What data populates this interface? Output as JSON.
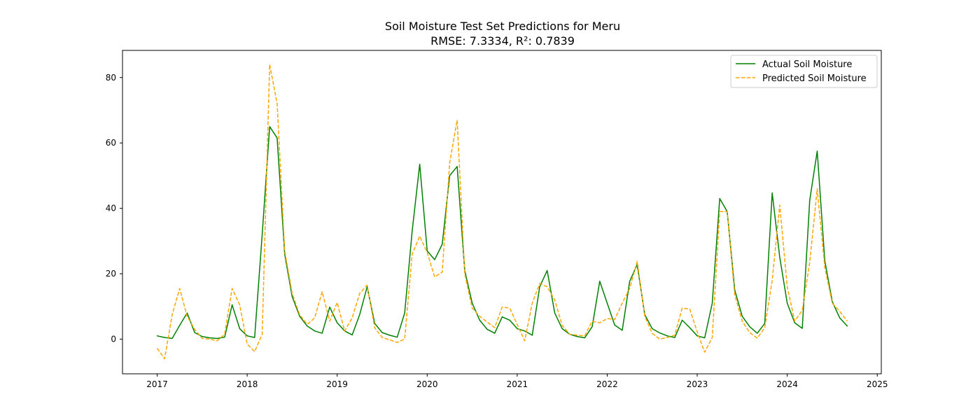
{
  "chart_data": {
    "type": "line",
    "title": "Soil Moisture Test Set Predictions for Meru",
    "subtitle": "RMSE: 7.3334, R²: 0.7839",
    "xlabel": "",
    "ylabel": "",
    "xlim": [
      2016.615,
      2025.045
    ],
    "ylim": [
      -10.6,
      88.3
    ],
    "x_ticks": [
      2017,
      2018,
      2019,
      2020,
      2021,
      2022,
      2023,
      2024,
      2025
    ],
    "x_tick_labels": [
      "2017",
      "2018",
      "2019",
      "2020",
      "2021",
      "2022",
      "2023",
      "2024",
      "2025"
    ],
    "y_ticks": [
      0,
      20,
      40,
      60,
      80
    ],
    "y_tick_labels": [
      "0",
      "20",
      "40",
      "60",
      "80"
    ],
    "grid": false,
    "legend_position": "top-right",
    "series": [
      {
        "name": "Actual Soil Moisture",
        "color": "#008000",
        "style": "solid",
        "x": [
          2017.0,
          2017.083,
          2017.167,
          2017.25,
          2017.333,
          2017.417,
          2017.5,
          2017.583,
          2017.667,
          2017.75,
          2017.833,
          2017.917,
          2018.0,
          2018.083,
          2018.167,
          2018.25,
          2018.333,
          2018.417,
          2018.5,
          2018.583,
          2018.667,
          2018.75,
          2018.833,
          2018.917,
          2019.0,
          2019.083,
          2019.167,
          2019.25,
          2019.333,
          2019.417,
          2019.5,
          2019.583,
          2019.667,
          2019.75,
          2019.833,
          2019.917,
          2020.0,
          2020.083,
          2020.167,
          2020.25,
          2020.333,
          2020.417,
          2020.5,
          2020.583,
          2020.667,
          2020.75,
          2020.833,
          2020.917,
          2021.0,
          2021.083,
          2021.167,
          2021.25,
          2021.333,
          2021.417,
          2021.5,
          2021.583,
          2021.667,
          2021.75,
          2021.833,
          2021.917,
          2022.0,
          2022.083,
          2022.167,
          2022.25,
          2022.333,
          2022.417,
          2022.5,
          2022.583,
          2022.667,
          2022.75,
          2022.833,
          2022.917,
          2023.0,
          2023.083,
          2023.167,
          2023.25,
          2023.333,
          2023.417,
          2023.5,
          2023.583,
          2023.667,
          2023.75,
          2023.833,
          2023.917,
          2024.0,
          2024.083,
          2024.167,
          2024.25,
          2024.333,
          2024.417,
          2024.5,
          2024.583,
          2024.667
        ],
        "values": [
          1.0,
          0.5,
          0.2,
          4.2,
          8.0,
          2.0,
          0.8,
          0.4,
          0.2,
          0.6,
          10.5,
          3.2,
          1.0,
          0.5,
          32.0,
          65.0,
          61.5,
          26.0,
          13.0,
          7.0,
          4.0,
          2.5,
          1.8,
          9.8,
          5.0,
          2.5,
          1.3,
          7.5,
          16.0,
          4.8,
          2.0,
          1.2,
          0.6,
          8.0,
          33.0,
          53.5,
          27.0,
          24.3,
          29.0,
          50.0,
          52.8,
          21.0,
          11.0,
          5.8,
          3.0,
          1.8,
          6.8,
          5.8,
          3.2,
          2.5,
          1.2,
          16.0,
          21.0,
          8.0,
          3.2,
          1.5,
          0.8,
          0.4,
          3.8,
          17.7,
          11.0,
          4.3,
          2.7,
          17.7,
          22.8,
          7.5,
          3.2,
          1.9,
          1.0,
          0.5,
          5.8,
          3.5,
          1.0,
          0.4,
          11.0,
          43.0,
          39.0,
          15.0,
          7.0,
          3.8,
          1.8,
          4.8,
          44.7,
          25.0,
          11.0,
          5.0,
          3.3,
          42.5,
          57.5,
          24.0,
          11.5,
          6.5,
          4.0
        ]
      },
      {
        "name": "Predicted Soil Moisture",
        "color": "#ffa500",
        "style": "dashed",
        "x": [
          2017.0,
          2017.083,
          2017.167,
          2017.25,
          2017.333,
          2017.417,
          2017.5,
          2017.583,
          2017.667,
          2017.75,
          2017.833,
          2017.917,
          2018.0,
          2018.083,
          2018.167,
          2018.25,
          2018.333,
          2018.417,
          2018.5,
          2018.583,
          2018.667,
          2018.75,
          2018.833,
          2018.917,
          2019.0,
          2019.083,
          2019.167,
          2019.25,
          2019.333,
          2019.417,
          2019.5,
          2019.583,
          2019.667,
          2019.75,
          2019.833,
          2019.917,
          2020.0,
          2020.083,
          2020.167,
          2020.25,
          2020.333,
          2020.417,
          2020.5,
          2020.583,
          2020.667,
          2020.75,
          2020.833,
          2020.917,
          2021.0,
          2021.083,
          2021.167,
          2021.25,
          2021.333,
          2021.417,
          2021.5,
          2021.583,
          2021.667,
          2021.75,
          2021.833,
          2021.917,
          2022.0,
          2022.083,
          2022.167,
          2022.25,
          2022.333,
          2022.417,
          2022.5,
          2022.583,
          2022.667,
          2022.75,
          2022.833,
          2022.917,
          2023.0,
          2023.083,
          2023.167,
          2023.25,
          2023.333,
          2023.417,
          2023.5,
          2023.583,
          2023.667,
          2023.75,
          2023.833,
          2023.917,
          2024.0,
          2024.083,
          2024.167,
          2024.25,
          2024.333,
          2024.417,
          2024.5,
          2024.583,
          2024.667
        ],
        "values": [
          -2.8,
          -6.0,
          7.5,
          15.5,
          7.0,
          3.0,
          0.2,
          0.0,
          -0.5,
          1.5,
          15.5,
          10.5,
          -1.5,
          -3.8,
          1.5,
          84.0,
          72.0,
          27.0,
          14.0,
          7.5,
          4.5,
          6.5,
          14.5,
          5.5,
          11.2,
          2.5,
          6.5,
          14.0,
          16.5,
          3.5,
          0.5,
          -0.2,
          -1.0,
          0.0,
          26.0,
          31.5,
          26.5,
          19.0,
          20.5,
          54.0,
          67.0,
          20.0,
          9.5,
          7.0,
          5.2,
          3.5,
          9.8,
          9.5,
          4.5,
          -0.5,
          11.0,
          17.0,
          16.0,
          12.0,
          4.2,
          1.5,
          1.2,
          1.0,
          5.5,
          5.0,
          6.3,
          6.0,
          11.0,
          15.5,
          23.8,
          7.0,
          1.8,
          0.0,
          0.5,
          1.2,
          9.5,
          9.2,
          2.2,
          -4.0,
          0.5,
          39.0,
          39.0,
          13.5,
          5.5,
          2.0,
          0.3,
          3.5,
          18.0,
          41.0,
          16.0,
          5.5,
          8.8,
          23.5,
          46.0,
          22.0,
          11.0,
          8.5,
          5.5
        ]
      }
    ]
  }
}
